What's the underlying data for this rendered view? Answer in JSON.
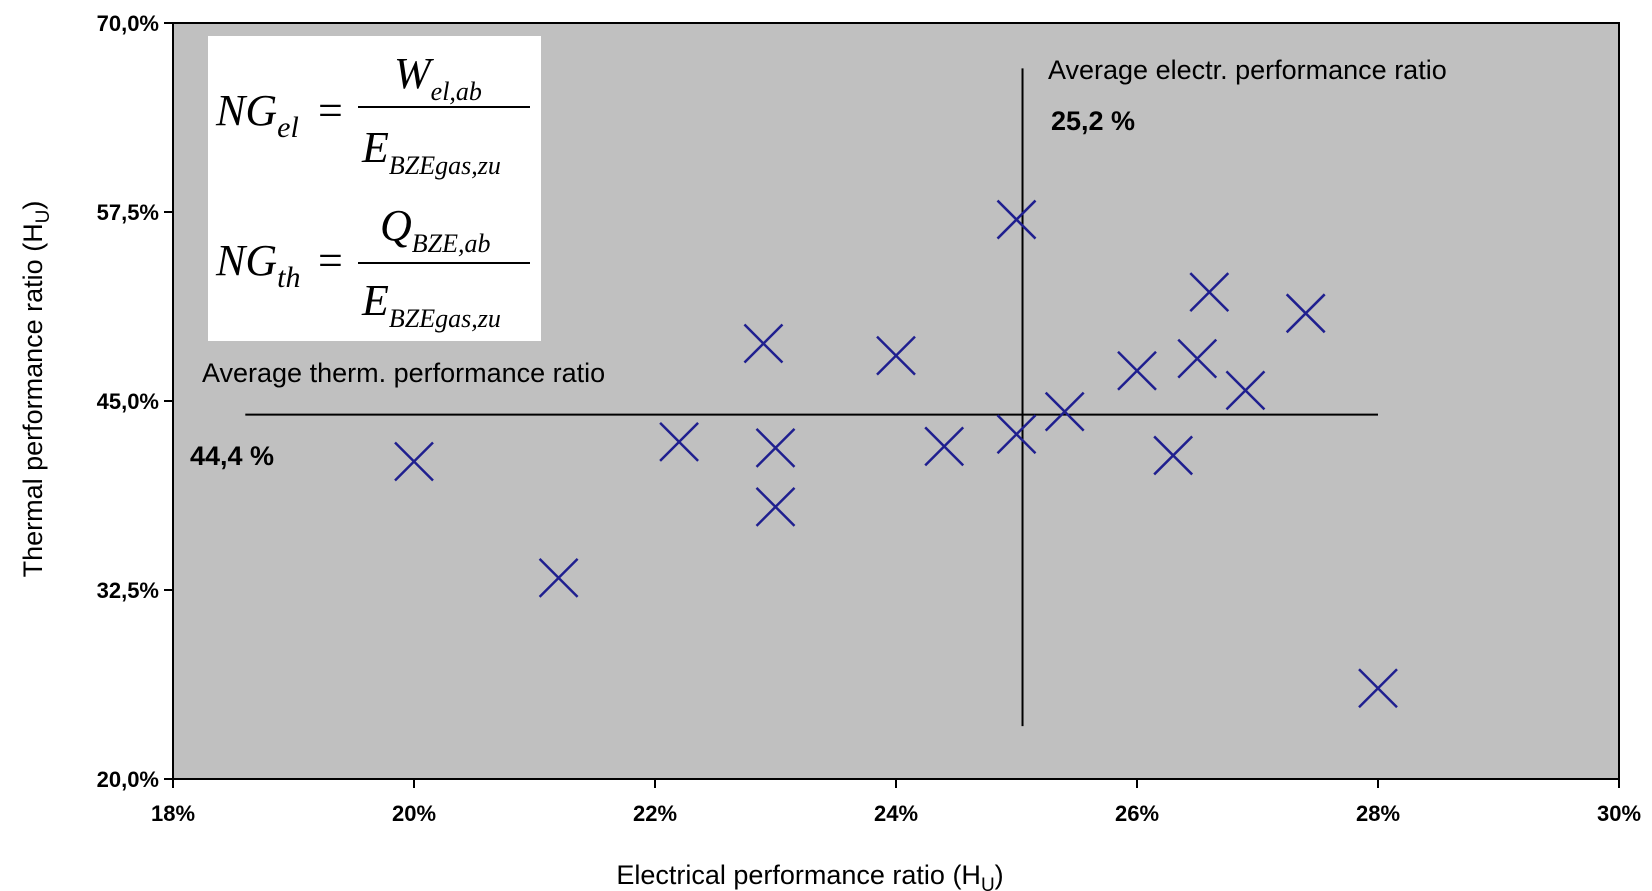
{
  "chart_data": {
    "type": "scatter",
    "xlabel": "Electrical performance ratio (H",
    "xlabel_sub": "U",
    "xlabel_end": ")",
    "ylabel": "Thermal performance ratio (H",
    "ylabel_sub": "U",
    "ylabel_end": ")",
    "xlim": [
      18,
      30
    ],
    "ylim": [
      20,
      70
    ],
    "x_ticks": [
      18,
      20,
      22,
      24,
      26,
      28,
      30
    ],
    "x_tick_labels": [
      "18%",
      "20%",
      "22%",
      "24%",
      "26%",
      "28%",
      "30%"
    ],
    "y_ticks": [
      20,
      32.5,
      45,
      57.5,
      70
    ],
    "y_tick_labels": [
      "20,0%",
      "32,5%",
      "45,0%",
      "57,5%",
      "70,0%"
    ],
    "marker": "x",
    "marker_color": "#1f1f8f",
    "plot_background": "#c0c0c0",
    "grid": false,
    "points": [
      {
        "x": 20.0,
        "y": 41.0
      },
      {
        "x": 21.2,
        "y": 33.3
      },
      {
        "x": 22.2,
        "y": 42.3
      },
      {
        "x": 22.9,
        "y": 48.8
      },
      {
        "x": 23.0,
        "y": 41.9
      },
      {
        "x": 23.0,
        "y": 38.0
      },
      {
        "x": 24.0,
        "y": 48.0
      },
      {
        "x": 24.4,
        "y": 42.0
      },
      {
        "x": 25.0,
        "y": 57.0
      },
      {
        "x": 25.0,
        "y": 42.8
      },
      {
        "x": 25.4,
        "y": 44.3
      },
      {
        "x": 26.0,
        "y": 47.0
      },
      {
        "x": 26.3,
        "y": 41.4
      },
      {
        "x": 26.5,
        "y": 47.8
      },
      {
        "x": 26.6,
        "y": 52.2
      },
      {
        "x": 26.9,
        "y": 45.7
      },
      {
        "x": 27.4,
        "y": 50.8
      },
      {
        "x": 28.0,
        "y": 26.0
      }
    ],
    "reference_lines": {
      "vertical": {
        "x": 25.05,
        "y_from": 23.5,
        "y_to": 67.0
      },
      "horizontal": {
        "y": 44.1,
        "x_from": 18.6,
        "x_to": 28.0
      }
    },
    "annotations": {
      "electr_label": "Average electr. performance ratio",
      "electr_value": "25,2 %",
      "therm_label": "Average therm. performance ratio",
      "therm_value": "44,4 %"
    },
    "formula": {
      "line1": {
        "lhs": "NG",
        "lhs_sub": "el",
        "eq": "=",
        "num": "W",
        "num_sub": "el,ab",
        "den": "E",
        "den_sub": "BZEgas,zu"
      },
      "line2": {
        "lhs": "NG",
        "lhs_sub": "th",
        "eq": "=",
        "num": "Q",
        "num_sub": "BZE,ab",
        "den": "E",
        "den_sub": "BZEgas,zu"
      }
    }
  }
}
